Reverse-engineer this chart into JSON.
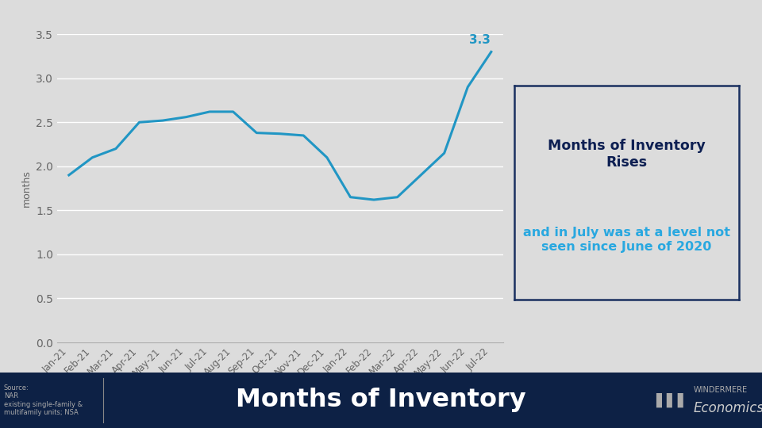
{
  "months": [
    "Jan-21",
    "Feb-21",
    "Mar-21",
    "Apr-21",
    "May-21",
    "Jun-21",
    "Jul-21",
    "Aug-21",
    "Sep-21",
    "Oct-21",
    "Nov-21",
    "Dec-21",
    "Jan-22",
    "Feb-22",
    "Mar-22",
    "Apr-22",
    "May-22",
    "Jun-22",
    "Jul-22"
  ],
  "values": [
    1.9,
    2.1,
    2.2,
    2.5,
    2.52,
    2.56,
    2.62,
    2.62,
    2.38,
    2.37,
    2.35,
    2.1,
    1.65,
    1.62,
    1.65,
    1.9,
    2.15,
    2.9,
    3.3
  ],
  "line_color": "#2196c4",
  "line_width": 2.2,
  "ylim": [
    0.0,
    3.5
  ],
  "yticks": [
    0.0,
    0.5,
    1.0,
    1.5,
    2.0,
    2.5,
    3.0,
    3.5
  ],
  "ylabel": "months",
  "bg_color": "#dcdcdc",
  "plot_bg_color": "#dcdcdc",
  "grid_color": "#ffffff",
  "annotation_value": "3.3",
  "annotation_color": "#2196c4",
  "box_title": "Months of Inventory\nRises",
  "box_title_color": "#0d1f52",
  "box_subtitle": "and in July was at a level not\nseen since June of 2020",
  "box_subtitle_color": "#29a8e0",
  "box_bg": "#dcdcdc",
  "box_edge_color": "#1a3060",
  "footer_bg": "#0d2145",
  "footer_text": "Months of Inventory",
  "footer_text_color": "#ffffff",
  "source_text": "Source:\nNAR\nexisting single-family &\nmultifamily units; NSA",
  "windermere_line1": "WINDERMERE",
  "windermere_line2": "Economics",
  "tick_color": "#666666",
  "spine_color": "#aaaaaa"
}
